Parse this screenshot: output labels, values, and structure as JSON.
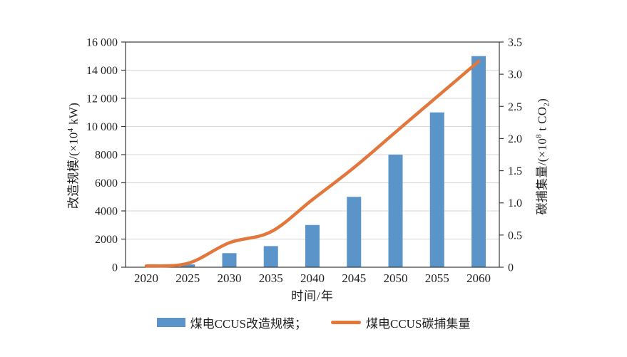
{
  "figure": {
    "x_title": "时间/年",
    "y_left_title": {
      "prefix": "改造规模/(×10",
      "sup": "4",
      "suffix": " kW)"
    },
    "y_right_title": {
      "prefix": "碳捕集量/(×10",
      "sup": "8",
      "mid": " t CO",
      "sub": "2",
      "suffix": ")"
    },
    "legend": [
      {
        "label": "煤电CCUS改造规模；",
        "swatch": "bar-swatch",
        "color": "#5b94c8"
      },
      {
        "label": "煤电CCUS碳捕集量",
        "swatch": "line-swatch",
        "color": "#e2773c"
      }
    ]
  },
  "colors": {
    "bar": "#5b94c8",
    "line": "#e2773c",
    "grid": "#d7d7d7",
    "frame": "#3a3a3a",
    "text": "#1f1f1f"
  },
  "chart_data": {
    "type": "combo",
    "title": "",
    "categories": [
      "2020",
      "2025",
      "2030",
      "2035",
      "2040",
      "2045",
      "2050",
      "2055",
      "2060"
    ],
    "series": [
      {
        "name": "煤电CCUS改造规模",
        "type": "bar",
        "axis": "left",
        "color": "#5b94c8",
        "values": [
          0,
          200,
          1000,
          1500,
          3000,
          5000,
          8000,
          11000,
          15000
        ]
      },
      {
        "name": "煤电CCUS碳捕集量",
        "type": "line",
        "axis": "right",
        "color": "#e2773c",
        "values": [
          0.02,
          0.06,
          0.38,
          0.55,
          1.05,
          1.55,
          2.1,
          2.65,
          3.2
        ]
      }
    ],
    "x_label": "时间/年",
    "y_left": {
      "label": "改造规模/(×10⁴ kW)",
      "min": 0,
      "max": 16000,
      "ticks": [
        {
          "v": 0,
          "label": "0"
        },
        {
          "v": 2000,
          "label": "2000"
        },
        {
          "v": 4000,
          "label": "4000"
        },
        {
          "v": 6000,
          "label": "6000"
        },
        {
          "v": 8000,
          "label": "8000"
        },
        {
          "v": 10000,
          "label": "10 000"
        },
        {
          "v": 12000,
          "label": "12 000"
        },
        {
          "v": 14000,
          "label": "14 000"
        },
        {
          "v": 16000,
          "label": "16 000"
        }
      ]
    },
    "y_right": {
      "label": "碳捕集量/(×10⁸ t CO₂)",
      "min": 0,
      "max": 3.5,
      "ticks": [
        {
          "v": 0,
          "label": "0"
        },
        {
          "v": 0.5,
          "label": "0.5"
        },
        {
          "v": 1.0,
          "label": "1.0"
        },
        {
          "v": 1.5,
          "label": "1.5"
        },
        {
          "v": 2.0,
          "label": "2.0"
        },
        {
          "v": 2.5,
          "label": "2.5"
        },
        {
          "v": 3.0,
          "label": "3.0"
        },
        {
          "v": 3.5,
          "label": "3.5"
        }
      ]
    },
    "grid": true,
    "legend_position": "bottom"
  }
}
